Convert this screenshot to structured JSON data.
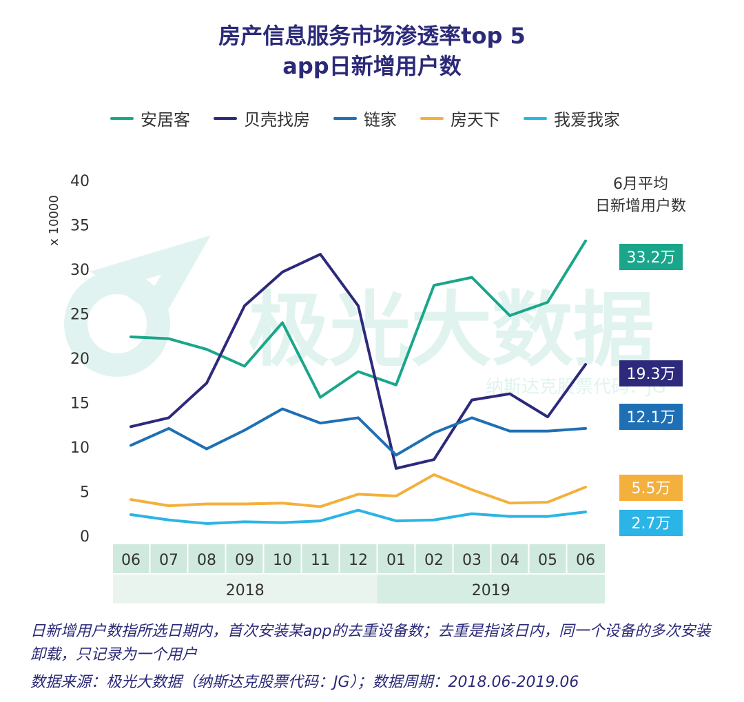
{
  "title_line1": "房产信息服务市场渗透率top 5",
  "title_line2": "app日新增用户数",
  "avg_label_line1": "6月平均",
  "avg_label_line2": "日新增用户数",
  "y_unit": "x 10000",
  "watermark": {
    "main": "极光大数据",
    "sub": "纳斯达克股票代码：JG"
  },
  "footnote": "日新增用户数指所选日期内，首次安装某app的去重设备数；去重是指该日内，同一个设备的多次安装卸载，只记录为一个用户",
  "source": "数据来源：极光大数据（纳斯达克股票代码：JG）；数据周期：2018.06-2019.06",
  "chart_data": {
    "type": "line",
    "title": "房产信息服务市场渗透率top 5 app日新增用户数",
    "categories": [
      "06",
      "07",
      "08",
      "09",
      "10",
      "11",
      "12",
      "01",
      "02",
      "03",
      "04",
      "05",
      "06"
    ],
    "year_groups": [
      {
        "label": "2018",
        "count": 7
      },
      {
        "label": "2019",
        "count": 6
      }
    ],
    "yticks": [
      "0",
      "5",
      "10",
      "15",
      "20",
      "25",
      "30",
      "35",
      "40"
    ],
    "ylim": [
      0,
      40
    ],
    "ylabel": "x 10000",
    "series": [
      {
        "name": "安居客",
        "color": "#1aa68a",
        "values": [
          22.4,
          22.2,
          21.0,
          19.1,
          24.0,
          15.6,
          18.5,
          17.0,
          28.2,
          29.1,
          24.8,
          26.3,
          33.2
        ],
        "end_label": "33.2万"
      },
      {
        "name": "贝壳找房",
        "color": "#2d2a7c",
        "values": [
          12.3,
          13.3,
          17.2,
          25.9,
          29.7,
          31.7,
          25.9,
          7.6,
          8.6,
          15.3,
          16.0,
          13.4,
          19.3
        ],
        "end_label": "19.3万"
      },
      {
        "name": "链家",
        "color": "#1f6fb5",
        "values": [
          10.2,
          12.1,
          9.8,
          11.9,
          14.3,
          12.7,
          13.3,
          9.1,
          11.6,
          13.3,
          11.8,
          11.8,
          12.1
        ],
        "end_label": "12.1万"
      },
      {
        "name": "房天下",
        "color": "#f4b03c",
        "values": [
          4.1,
          3.4,
          3.6,
          3.6,
          3.7,
          3.3,
          4.7,
          4.5,
          6.9,
          5.2,
          3.7,
          3.8,
          5.5
        ],
        "end_label": "5.5万"
      },
      {
        "name": "我爱我家",
        "color": "#2bb4e6",
        "values": [
          2.4,
          1.8,
          1.4,
          1.6,
          1.5,
          1.7,
          2.9,
          1.7,
          1.8,
          2.5,
          2.2,
          2.2,
          2.7
        ],
        "end_label": "2.7万"
      }
    ]
  }
}
